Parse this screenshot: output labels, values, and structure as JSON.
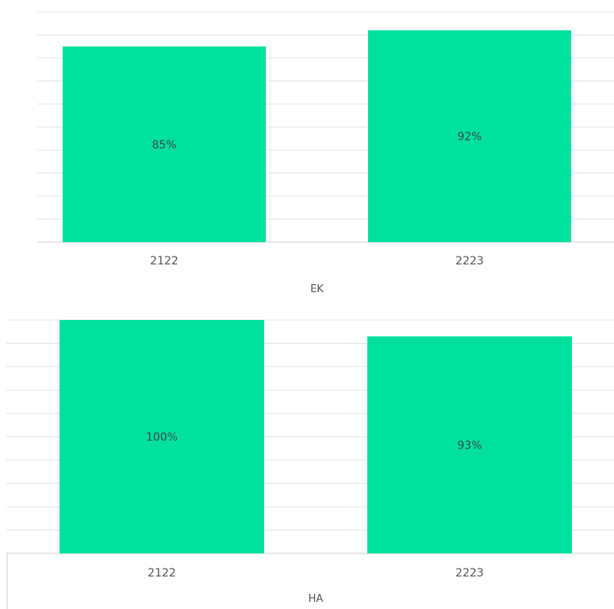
{
  "colors": {
    "bar": "#00e19e"
  },
  "chart_data": [
    {
      "type": "bar",
      "categories": [
        "2122",
        "2223"
      ],
      "values": [
        85,
        92
      ],
      "data_labels": [
        "85%",
        "92%"
      ],
      "xlabel": "EK",
      "ylabel": "",
      "ylim": [
        0,
        100
      ],
      "grid": true,
      "legend": "none"
    },
    {
      "type": "bar",
      "categories": [
        "2122",
        "2223"
      ],
      "values": [
        100,
        93
      ],
      "data_labels": [
        "100%",
        "93%"
      ],
      "xlabel": "HA",
      "ylabel": "",
      "ylim": [
        0,
        100
      ],
      "grid": true,
      "legend": "none"
    }
  ]
}
